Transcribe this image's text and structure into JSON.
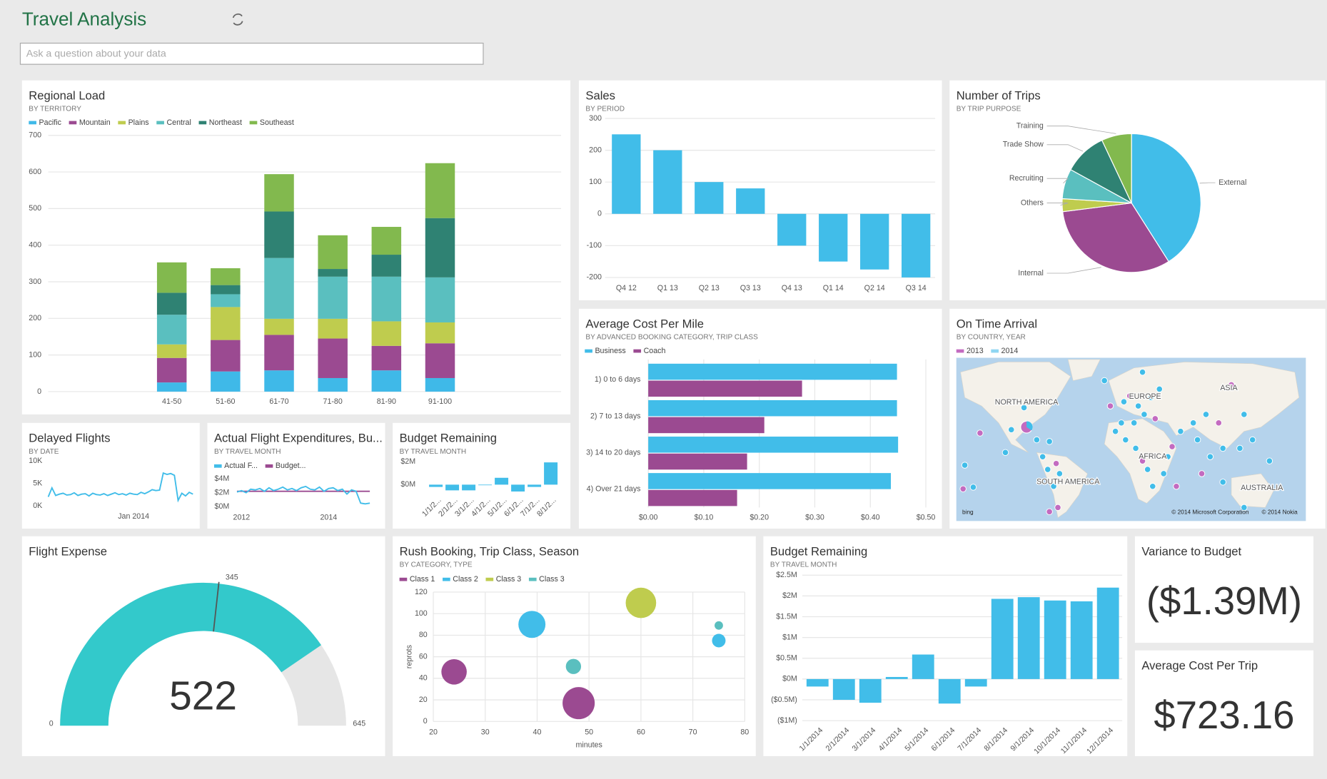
{
  "header": {
    "title": "Travel Analysis",
    "search_placeholder": "Ask a question about your data"
  },
  "chart_data": [
    {
      "type": "bar",
      "title": "Regional Load",
      "subtitle": "BY TERRITORY",
      "stacked": true,
      "grid": true,
      "categories": [
        "41-50",
        "51-60",
        "61-70",
        "71-80",
        "81-90",
        "91-100"
      ],
      "series": [
        {
          "name": "Pacific",
          "color": "#3fb9e8",
          "values": [
            25,
            55,
            58,
            37,
            58,
            37
          ]
        },
        {
          "name": "Mountain",
          "color": "#9b4a91",
          "values": [
            67,
            86,
            97,
            108,
            67,
            95
          ]
        },
        {
          "name": "Plains",
          "color": "#bfcc4e",
          "values": [
            37,
            90,
            44,
            54,
            67,
            57
          ]
        },
        {
          "name": "Central",
          "color": "#5abfbf",
          "values": [
            81,
            35,
            166,
            115,
            122,
            123
          ]
        },
        {
          "name": "Northeast",
          "color": "#2f8273",
          "values": [
            60,
            25,
            127,
            21,
            60,
            162
          ]
        },
        {
          "name": "Southeast",
          "color": "#82b94e",
          "values": [
            83,
            46,
            102,
            92,
            76,
            150
          ]
        }
      ],
      "ylim": [
        0,
        700
      ],
      "yticks": [
        0,
        100,
        200,
        300,
        400,
        500,
        600,
        700
      ]
    },
    {
      "type": "bar",
      "title": "Sales",
      "subtitle": "BY PERIOD",
      "grid": true,
      "color": "#41bde9",
      "categories": [
        "Q4 12",
        "Q1 13",
        "Q2 13",
        "Q3 13",
        "Q4 13",
        "Q1 14",
        "Q2 14",
        "Q3 14"
      ],
      "values": [
        250,
        200,
        100,
        80,
        -100,
        -150,
        -175,
        -200
      ],
      "ylim": [
        -200,
        300
      ],
      "yticks": [
        -200,
        -100,
        0,
        100,
        200,
        300
      ]
    },
    {
      "type": "pie",
      "title": "Number of Trips",
      "subtitle": "BY TRIP PURPOSE",
      "categories": [
        "External",
        "Internal",
        "Others",
        "Recruiting",
        "Trade Show",
        "Training"
      ],
      "values": [
        41,
        32,
        3,
        7,
        10,
        7
      ],
      "colors": [
        "#41bde9",
        "#9b4a91",
        "#bfcc4e",
        "#5abfbf",
        "#2f8273",
        "#82b94e"
      ]
    },
    {
      "type": "bar",
      "horizontal": true,
      "title": "Average Cost Per Mile",
      "subtitle": "BY ADVANCED BOOKING CATEGORY, TRIP CLASS",
      "grid": true,
      "categories": [
        "1) 0 to 6 days",
        "2) 7 to 13 days",
        "3) 14 to 20 days",
        "4) Over 21 days"
      ],
      "series": [
        {
          "name": "Business",
          "color": "#41bde9",
          "values": [
            0.448,
            0.448,
            0.45,
            0.437
          ]
        },
        {
          "name": "Coach",
          "color": "#9b4a91",
          "values": [
            0.277,
            0.209,
            0.178,
            0.16
          ]
        }
      ],
      "xlim": [
        0,
        0.5
      ],
      "xticks": [
        {
          "value": 0,
          "label": "$0.00"
        },
        {
          "value": 0.1,
          "label": "$0.10"
        },
        {
          "value": 0.2,
          "label": "$0.20"
        },
        {
          "value": 0.3,
          "label": "$0.30"
        },
        {
          "value": 0.4,
          "label": "$0.40"
        },
        {
          "value": 0.5,
          "label": "$0.50"
        }
      ]
    },
    {
      "type": "map",
      "title": "On Time Arrival",
      "subtitle": "BY COUNTRY, YEAR",
      "series": [
        {
          "name": "2013",
          "color": "#c36bc0"
        },
        {
          "name": "2014",
          "color": "#8fd6f2"
        }
      ],
      "regions": [
        "NORTH AMERICA",
        "EUROPE",
        "ASIA",
        "AFRICA",
        "SOUTH AMERICA",
        "AUSTRALIA"
      ],
      "credits": [
        "bing",
        "© 2014 Microsoft Corporation",
        "© 2014 Nokia"
      ]
    },
    {
      "type": "line",
      "title": "Delayed Flights",
      "subtitle": "BY DATE",
      "grid": false,
      "categories": [
        null,
        null,
        null,
        null,
        null,
        null,
        null,
        null,
        null,
        null,
        null,
        null,
        null,
        null,
        null,
        null,
        null,
        null,
        null,
        null,
        null,
        null,
        null,
        "Jan 2014",
        null,
        null,
        null,
        null,
        null,
        null,
        null,
        null,
        null,
        null,
        null,
        null,
        null,
        null,
        null,
        null
      ],
      "series": [
        {
          "color": "#41bde9",
          "values": [
            2000,
            4000,
            2300,
            2600,
            2800,
            2400,
            2500,
            2900,
            2300,
            2600,
            2700,
            2200,
            2800,
            2500,
            2400,
            2700,
            2300,
            2600,
            2900,
            2500,
            2700,
            2400,
            2800,
            2600,
            2500,
            3000,
            2700,
            3100,
            3600,
            3400,
            3500,
            7300,
            7000,
            7200,
            6800,
            1200,
            2800,
            2200,
            3000,
            2600
          ]
        }
      ],
      "ylim": [
        0,
        10000
      ],
      "yticks": [
        {
          "value": 0,
          "label": "0K"
        },
        {
          "value": 5000,
          "label": "5K"
        },
        {
          "value": 10000,
          "label": "10K"
        }
      ]
    },
    {
      "type": "line",
      "title": "Actual Flight Expenditures, Bu...",
      "subtitle": "BY TRAVEL MONTH",
      "grid": false,
      "categories": [
        null,
        "2012",
        null,
        null,
        null,
        null,
        null,
        null,
        null,
        null,
        null,
        null,
        null,
        null,
        null,
        null,
        null,
        null,
        null,
        null,
        "2014",
        null,
        null,
        null,
        null,
        null,
        null,
        null,
        null,
        null
      ],
      "series": [
        {
          "name": "Actual F...",
          "color": "#41bde9",
          "values": [
            2100000,
            2300000,
            2000000,
            2500000,
            2400000,
            2600000,
            2200000,
            2700000,
            2300000,
            2500000,
            2800000,
            2400000,
            2600000,
            2300000,
            2700000,
            2900000,
            2500000,
            2400000,
            2800000,
            2200000,
            2600000,
            2700000,
            2300000,
            2500000,
            1800000,
            2400000,
            2200000,
            500000,
            400000,
            500000
          ]
        },
        {
          "name": "Budget...",
          "color": "#9b4a91",
          "values": [
            2200000,
            2200000,
            2200000,
            2200000,
            2200000,
            2200000,
            2200000,
            2200000,
            2200000,
            2200000,
            2200000,
            2200000,
            2200000,
            2200000,
            2200000,
            2200000,
            2200000,
            2200000,
            2200000,
            2200000,
            2200000,
            2200000,
            2200000,
            2200000,
            2200000,
            2200000,
            2200000,
            2200000,
            2200000,
            2200000
          ]
        }
      ],
      "ylim": [
        0,
        4000000
      ],
      "yticks": [
        {
          "value": 0,
          "label": "$0M"
        },
        {
          "value": 2000000,
          "label": "$2M"
        },
        {
          "value": 4000000,
          "label": "$4M"
        }
      ]
    },
    {
      "type": "bar",
      "title": "Budget Remaining",
      "subtitle": "BY TRAVEL MONTH",
      "grid": false,
      "color": "#41bde9",
      "categories": [
        "1/1/2...",
        "2/1/2...",
        "3/1/2...",
        "4/1/2...",
        "5/1/2...",
        "6/1/2...",
        "7/1/2...",
        "8/1/2..."
      ],
      "values": [
        -200000,
        -500000,
        -500000,
        -50000,
        600000,
        -600000,
        -200000,
        1950000
      ],
      "ylim": [
        -1000000,
        2000000
      ],
      "yticks": [
        {
          "value": 0,
          "label": "$0M"
        },
        {
          "value": 2000000,
          "label": "$2M"
        }
      ]
    },
    {
      "type": "gauge",
      "title": "Flight Expense",
      "value": 522,
      "target": 345,
      "min": 0,
      "max": 645,
      "color": "#33c9cb"
    },
    {
      "type": "bubble",
      "title": "Rush Booking, Trip Class, Season",
      "subtitle": "BY CATEGORY, TYPE",
      "grid": true,
      "xlabel": "minutes",
      "ylabel": "reprots",
      "series": [
        {
          "name": "Class 1",
          "color": "#9b4a91",
          "x": [
            24,
            48
          ],
          "y": [
            46,
            17
          ],
          "size": [
            15,
            19
          ]
        },
        {
          "name": "Class 2",
          "color": "#41bde9",
          "x": [
            39,
            75
          ],
          "y": [
            90,
            75
          ],
          "size": [
            16,
            8
          ]
        },
        {
          "name": "Class 3",
          "color": "#bfcc4e",
          "x": [
            60
          ],
          "y": [
            110
          ],
          "size": [
            18
          ]
        },
        {
          "name": "Class 3",
          "color": "#5abfbf",
          "x": [
            47,
            75
          ],
          "y": [
            51,
            89
          ],
          "size": [
            9,
            5
          ]
        }
      ],
      "xlim": [
        20,
        80
      ],
      "xticks": [
        20,
        30,
        40,
        50,
        60,
        70,
        80
      ],
      "ylim": [
        0,
        120
      ],
      "yticks": [
        0,
        20,
        40,
        60,
        80,
        100,
        120
      ]
    },
    {
      "type": "bar",
      "title": "Budget Remaining",
      "subtitle": "BY TRAVEL MONTH",
      "grid": true,
      "color": "#41bde9",
      "categories": [
        "1/1/2014",
        "2/1/2014",
        "3/1/2014",
        "4/1/2014",
        "5/1/2014",
        "6/1/2014",
        "7/1/2014",
        "8/1/2014",
        "9/1/2014",
        "10/1/2014",
        "11/1/2014",
        "12/1/2014"
      ],
      "values": [
        -180000,
        -500000,
        -570000,
        50000,
        590000,
        -590000,
        -180000,
        1930000,
        1970000,
        1890000,
        1870000,
        2200000
      ],
      "ylim": [
        -1000000,
        2500000
      ],
      "yticks": [
        {
          "value": -1000000,
          "label": "($1M)"
        },
        {
          "value": -500000,
          "label": "($0.5M)"
        },
        {
          "value": 0,
          "label": "$0M"
        },
        {
          "value": 500000,
          "label": "$0.5M"
        },
        {
          "value": 1000000,
          "label": "$1M"
        },
        {
          "value": 1500000,
          "label": "$1.5M"
        },
        {
          "value": 2000000,
          "label": "$2M"
        },
        {
          "value": 2500000,
          "label": "$2.5M"
        }
      ]
    }
  ],
  "cards": [
    {
      "title": "Variance to Budget",
      "value": "($1.39M)"
    },
    {
      "title": "Average Cost Per Trip",
      "value": "$723.16"
    }
  ]
}
